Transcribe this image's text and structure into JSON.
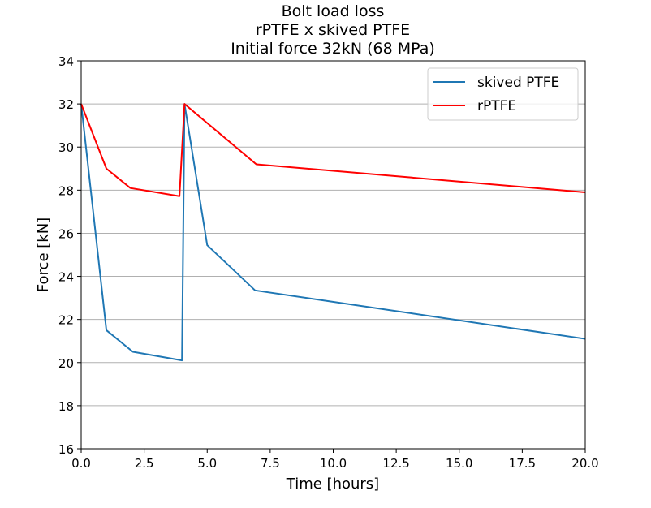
{
  "chart_data": {
    "type": "line",
    "title": [
      "Bolt load loss",
      "rPTFE x skived PTFE",
      "Initial force 32kN (68 MPa)"
    ],
    "xlabel": "Time [hours]",
    "ylabel": "Force [kN]",
    "xlim": [
      0,
      20
    ],
    "ylim": [
      16,
      34
    ],
    "xticks": [
      "0.0",
      "2.5",
      "5.0",
      "7.5",
      "10.0",
      "12.5",
      "15.0",
      "17.5",
      "20.0"
    ],
    "xtick_values": [
      0,
      2.5,
      5,
      7.5,
      10,
      12.5,
      15,
      17.5,
      20
    ],
    "yticks": [
      "16",
      "18",
      "20",
      "22",
      "24",
      "26",
      "28",
      "30",
      "32",
      "34"
    ],
    "ytick_values": [
      16,
      18,
      20,
      22,
      24,
      26,
      28,
      30,
      32,
      34
    ],
    "grid": "y",
    "legend_position": "top-right",
    "series": [
      {
        "name": "skived PTFE",
        "color": "#1f77b4",
        "x": [
          0,
          1.0,
          2.05,
          4.0,
          4.1,
          5.0,
          6.9,
          20
        ],
        "y": [
          32,
          21.5,
          20.5,
          20.1,
          32,
          25.45,
          23.35,
          21.1
        ]
      },
      {
        "name": "rPTFE",
        "color": "#ff0000",
        "x": [
          0,
          1.0,
          1.95,
          3.9,
          4.1,
          6.95,
          20
        ],
        "y": [
          32,
          29.0,
          28.1,
          27.72,
          32,
          29.2,
          27.9
        ]
      }
    ]
  }
}
